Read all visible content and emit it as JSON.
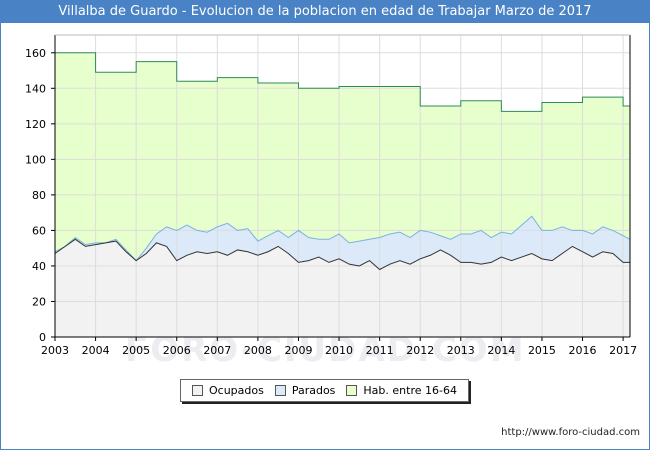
{
  "title": "Villalba de Guardo - Evolucion de la poblacion en edad de Trabajar Marzo de 2017",
  "footer": "http://www.foro-ciudad.com",
  "watermark": "FORO-CIUDAD.COM",
  "colors": {
    "title_bg": "#4a82c6",
    "ocupados_fill": "#f2f2f2",
    "parados_fill": "#dbe9f8",
    "hab_fill": "#e6ffcc",
    "hab_line": "#2e8b57",
    "parados_line": "#7ab3e0",
    "ocupados_line": "#333333"
  },
  "legend": {
    "ocupados": "Ocupados",
    "parados": "Parados",
    "hab": "Hab. entre 16-64"
  },
  "chart_data": {
    "type": "area",
    "title": "Villalba de Guardo - Evolucion de la poblacion en edad de Trabajar Marzo de 2017",
    "xlim": [
      2003,
      2017.17
    ],
    "ylim": [
      0,
      170
    ],
    "x_ticks": [
      "2003",
      "2004",
      "2005",
      "2006",
      "2007",
      "2008",
      "2009",
      "2010",
      "2011",
      "2012",
      "2013",
      "2014",
      "2015",
      "2016",
      "2017"
    ],
    "y_ticks": [
      0,
      20,
      40,
      60,
      80,
      100,
      120,
      140,
      160
    ],
    "grid": true,
    "legend_position": "bottom",
    "series": [
      {
        "name": "Hab. entre 16-64",
        "x": [
          2003,
          2004,
          2005,
          2006,
          2007,
          2008,
          2009,
          2010,
          2011,
          2012,
          2013,
          2014,
          2015,
          2016,
          2017,
          2017.17
        ],
        "values": [
          160,
          149,
          155,
          144,
          146,
          143,
          140,
          141,
          141,
          130,
          133,
          127,
          132,
          135,
          130,
          130
        ],
        "step": true
      },
      {
        "name": "Parados",
        "x": [
          2003.0,
          2003.25,
          2003.5,
          2003.75,
          2004.0,
          2004.25,
          2004.5,
          2004.75,
          2005.0,
          2005.25,
          2005.5,
          2005.75,
          2006.0,
          2006.25,
          2006.5,
          2006.75,
          2007.0,
          2007.25,
          2007.5,
          2007.75,
          2008.0,
          2008.25,
          2008.5,
          2008.75,
          2009.0,
          2009.25,
          2009.5,
          2009.75,
          2010.0,
          2010.25,
          2010.5,
          2010.75,
          2011.0,
          2011.25,
          2011.5,
          2011.75,
          2012.0,
          2012.25,
          2012.5,
          2012.75,
          2013.0,
          2013.25,
          2013.5,
          2013.75,
          2014.0,
          2014.25,
          2014.5,
          2014.75,
          2015.0,
          2015.25,
          2015.5,
          2015.75,
          2016.0,
          2016.25,
          2016.5,
          2016.75,
          2017.0,
          2017.17
        ],
        "values": [
          48,
          51,
          56,
          52,
          53,
          53,
          55,
          49,
          43,
          50,
          58,
          62,
          60,
          63,
          60,
          59,
          62,
          64,
          60,
          61,
          54,
          57,
          60,
          56,
          60,
          56,
          55,
          55,
          58,
          53,
          54,
          55,
          56,
          58,
          59,
          56,
          60,
          59,
          57,
          55,
          58,
          58,
          60,
          56,
          59,
          58,
          63,
          68,
          60,
          60,
          62,
          60,
          60,
          58,
          62,
          60,
          57,
          55
        ]
      },
      {
        "name": "Ocupados",
        "x": [
          2003.0,
          2003.25,
          2003.5,
          2003.75,
          2004.0,
          2004.25,
          2004.5,
          2004.75,
          2005.0,
          2005.25,
          2005.5,
          2005.75,
          2006.0,
          2006.25,
          2006.5,
          2006.75,
          2007.0,
          2007.25,
          2007.5,
          2007.75,
          2008.0,
          2008.25,
          2008.5,
          2008.75,
          2009.0,
          2009.25,
          2009.5,
          2009.75,
          2010.0,
          2010.25,
          2010.5,
          2010.75,
          2011.0,
          2011.25,
          2011.5,
          2011.75,
          2012.0,
          2012.25,
          2012.5,
          2012.75,
          2013.0,
          2013.25,
          2013.5,
          2013.75,
          2014.0,
          2014.25,
          2014.5,
          2014.75,
          2015.0,
          2015.25,
          2015.5,
          2015.75,
          2016.0,
          2016.25,
          2016.5,
          2016.75,
          2017.0,
          2017.17
        ],
        "values": [
          47,
          51,
          55,
          51,
          52,
          53,
          54,
          48,
          43,
          47,
          53,
          51,
          43,
          46,
          48,
          47,
          48,
          46,
          49,
          48,
          46,
          48,
          51,
          47,
          42,
          43,
          45,
          42,
          44,
          41,
          40,
          43,
          38,
          41,
          43,
          41,
          44,
          46,
          49,
          46,
          42,
          42,
          41,
          42,
          45,
          43,
          45,
          47,
          44,
          43,
          47,
          51,
          48,
          45,
          48,
          47,
          42,
          42
        ]
      }
    ]
  }
}
